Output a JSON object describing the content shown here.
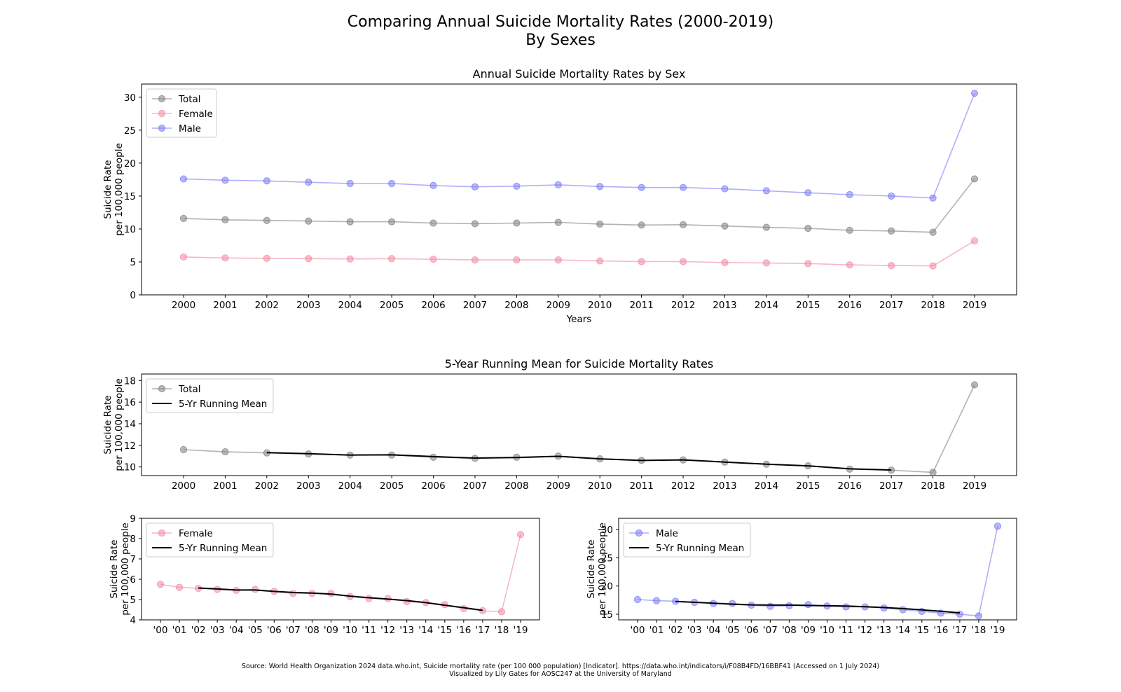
{
  "figure": {
    "title_line1": "Comparing Annual Suicide Mortality Rates (2000-2019)",
    "title_line2": "By Sexes",
    "source_line1": "Source: World Health Organization 2024 data.who.int, Suicide mortality rate (per 100 000 population) [Indicator]. https://data.who.int/indicators/i/F08B4FD/16BBF41 (Accessed on 1 July 2024)",
    "source_line2": "Visualized by Lily Gates for AOSC247 at the University of Maryland"
  },
  "colors": {
    "total": "#808080",
    "female": "#f08aa0",
    "male": "#7b7bf5",
    "mean": "#000000"
  },
  "chart_data": [
    {
      "type": "line",
      "title": "Annual Suicide Mortality Rates by Sex",
      "xlabel": "Years",
      "ylabel": [
        "Suicide Rate",
        "per 100,000 people"
      ],
      "categories": [
        "2000",
        "2001",
        "2002",
        "2003",
        "2004",
        "2005",
        "2006",
        "2007",
        "2008",
        "2009",
        "2010",
        "2011",
        "2012",
        "2013",
        "2014",
        "2015",
        "2016",
        "2017",
        "2018",
        "2019"
      ],
      "ylim": [
        0,
        32
      ],
      "yticks": [
        0,
        5,
        10,
        15,
        20,
        25,
        30
      ],
      "legend": "upper-left",
      "series": [
        {
          "name": "Total",
          "values": [
            11.6,
            11.4,
            11.3,
            11.2,
            11.1,
            11.1,
            10.9,
            10.8,
            10.9,
            11.0,
            10.75,
            10.6,
            10.65,
            10.45,
            10.25,
            10.1,
            9.8,
            9.7,
            9.5,
            17.6
          ]
        },
        {
          "name": "Female",
          "values": [
            5.75,
            5.6,
            5.55,
            5.5,
            5.45,
            5.5,
            5.4,
            5.3,
            5.3,
            5.3,
            5.15,
            5.05,
            5.05,
            4.9,
            4.85,
            4.75,
            4.55,
            4.45,
            4.4,
            8.2
          ]
        },
        {
          "name": "Male",
          "values": [
            17.6,
            17.4,
            17.3,
            17.1,
            16.9,
            16.9,
            16.6,
            16.4,
            16.5,
            16.7,
            16.45,
            16.3,
            16.3,
            16.1,
            15.8,
            15.5,
            15.2,
            15.0,
            14.7,
            30.6
          ]
        }
      ]
    },
    {
      "type": "line",
      "title": "5-Year Running Mean for Suicide Mortality Rates",
      "ylabel": [
        "Suicide Rate",
        "per 100,000 people"
      ],
      "categories": [
        "2000",
        "2001",
        "2002",
        "2003",
        "2004",
        "2005",
        "2006",
        "2007",
        "2008",
        "2009",
        "2010",
        "2011",
        "2012",
        "2013",
        "2014",
        "2015",
        "2016",
        "2017",
        "2018",
        "2019"
      ],
      "ylim": [
        9.2,
        18.6
      ],
      "yticks": [
        10,
        12,
        14,
        16,
        18
      ],
      "legend": "upper-left",
      "series": [
        {
          "name": "Total",
          "values": [
            11.6,
            11.4,
            11.3,
            11.2,
            11.1,
            11.1,
            10.9,
            10.8,
            10.9,
            11.0,
            10.75,
            10.6,
            10.65,
            10.45,
            10.25,
            10.1,
            9.8,
            9.7,
            9.5,
            17.6
          ]
        },
        {
          "name": "5-Yr Running Mean",
          "values": [
            null,
            null,
            11.32,
            11.22,
            11.1,
            11.12,
            10.96,
            10.82,
            10.87,
            10.98,
            10.75,
            10.6,
            10.65,
            10.45,
            10.25,
            10.1,
            9.82,
            9.72,
            null,
            null
          ]
        }
      ]
    },
    {
      "type": "line",
      "categories": [
        "'00",
        "'01",
        "'02",
        "'03",
        "'04",
        "'05",
        "'06",
        "'07",
        "'08",
        "'09",
        "'10",
        "'11",
        "'12",
        "'13",
        "'14",
        "'15",
        "'16",
        "'17",
        "'18",
        "'19"
      ],
      "ylabel": [
        "Suicide Rate",
        "per 100,000 people"
      ],
      "ylim": [
        4,
        9
      ],
      "yticks": [
        4,
        5,
        6,
        7,
        8,
        9
      ],
      "legend": "upper-left",
      "series": [
        {
          "name": "Female",
          "values": [
            5.75,
            5.6,
            5.55,
            5.5,
            5.45,
            5.5,
            5.4,
            5.3,
            5.3,
            5.3,
            5.15,
            5.05,
            5.05,
            4.9,
            4.85,
            4.75,
            4.55,
            4.45,
            4.4,
            8.2
          ]
        },
        {
          "name": "5-Yr Running Mean",
          "values": [
            null,
            null,
            5.57,
            5.52,
            5.47,
            5.47,
            5.4,
            5.35,
            5.32,
            5.27,
            5.17,
            5.09,
            5.02,
            4.95,
            4.85,
            4.72,
            4.6,
            4.47,
            null,
            null
          ]
        }
      ]
    },
    {
      "type": "line",
      "categories": [
        "'00",
        "'01",
        "'02",
        "'03",
        "'04",
        "'05",
        "'06",
        "'07",
        "'08",
        "'09",
        "'10",
        "'11",
        "'12",
        "'13",
        "'14",
        "'15",
        "'16",
        "'17",
        "'18",
        "'19"
      ],
      "ylabel": [
        "Suicide Rate",
        "per 100,000 people"
      ],
      "ylim": [
        14,
        32
      ],
      "yticks": [
        15,
        20,
        25,
        30
      ],
      "legend": "upper-left",
      "series": [
        {
          "name": "Male",
          "values": [
            17.6,
            17.4,
            17.3,
            17.1,
            16.9,
            16.9,
            16.6,
            16.4,
            16.5,
            16.7,
            16.45,
            16.3,
            16.3,
            16.1,
            15.8,
            15.5,
            15.2,
            15.0,
            14.7,
            30.6
          ]
        },
        {
          "name": "5-Yr Running Mean",
          "values": [
            null,
            null,
            17.26,
            17.12,
            16.96,
            16.78,
            16.66,
            16.62,
            16.62,
            16.55,
            16.49,
            16.45,
            16.33,
            16.19,
            16.0,
            15.78,
            15.52,
            15.24,
            null,
            null
          ]
        }
      ]
    }
  ]
}
